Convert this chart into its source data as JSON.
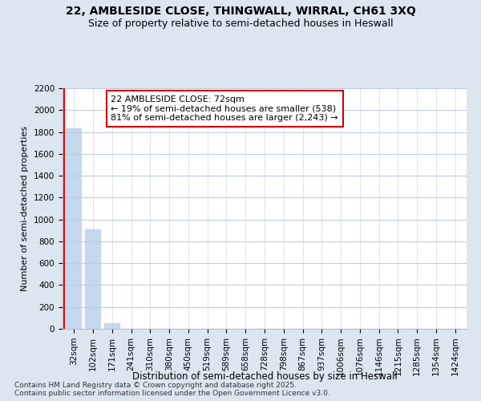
{
  "title": "22, AMBLESIDE CLOSE, THINGWALL, WIRRAL, CH61 3XQ",
  "subtitle": "Size of property relative to semi-detached houses in Heswall",
  "xlabel": "Distribution of semi-detached houses by size in Heswall",
  "ylabel": "Number of semi-detached properties",
  "bin_labels": [
    "32sqm",
    "102sqm",
    "171sqm",
    "241sqm",
    "310sqm",
    "380sqm",
    "450sqm",
    "519sqm",
    "589sqm",
    "658sqm",
    "728sqm",
    "798sqm",
    "867sqm",
    "937sqm",
    "1006sqm",
    "1076sqm",
    "1146sqm",
    "1215sqm",
    "1285sqm",
    "1354sqm",
    "1424sqm"
  ],
  "bin_values": [
    1830,
    907,
    50,
    0,
    0,
    0,
    0,
    0,
    0,
    0,
    0,
    0,
    0,
    0,
    0,
    0,
    0,
    0,
    0,
    0,
    0
  ],
  "ylim": [
    0,
    2200
  ],
  "yticks": [
    0,
    200,
    400,
    600,
    800,
    1000,
    1200,
    1400,
    1600,
    1800,
    2000,
    2200
  ],
  "property_sqm": 72,
  "property_bin_index": 0,
  "bar_color": "#c5d8ee",
  "annotation_text": "22 AMBLESIDE CLOSE: 72sqm\n← 19% of semi-detached houses are smaller (538)\n81% of semi-detached houses are larger (2,243) →",
  "annotation_box_color": "#cc0000",
  "annotation_fill": "#ffffff",
  "background_color": "#dce6f1",
  "plot_bg_color": "#ffffff",
  "footer_text": "Contains HM Land Registry data © Crown copyright and database right 2025.\nContains public sector information licensed under the Open Government Licence v3.0.",
  "title_fontsize": 10,
  "subtitle_fontsize": 9,
  "ylabel_fontsize": 8,
  "xlabel_fontsize": 8.5,
  "tick_fontsize": 7.5,
  "footer_fontsize": 6.5,
  "red_line_x": -0.5
}
